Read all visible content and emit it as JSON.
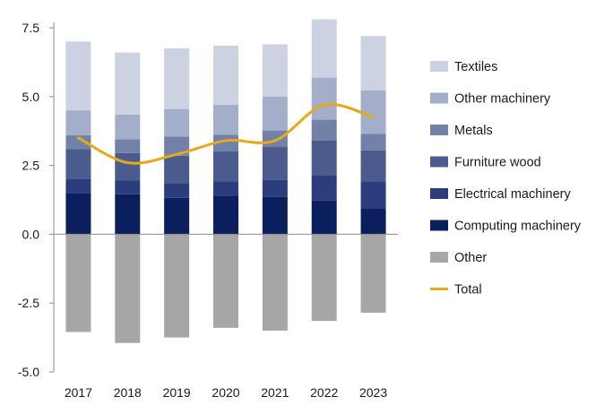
{
  "chart_data": {
    "type": "bar",
    "stacked": true,
    "categories": [
      "2017",
      "2018",
      "2019",
      "2020",
      "2021",
      "2022",
      "2023"
    ],
    "ylim": [
      -5.0,
      7.5
    ],
    "yticks": [
      "-5.0",
      "-2.5",
      "0.0",
      "2.5",
      "5.0",
      "7.5"
    ],
    "grid": false,
    "legend_position": "right",
    "series": [
      {
        "name": "Computing machinery",
        "color": "#0b1f5e",
        "values": [
          1.5,
          1.45,
          1.32,
          1.4,
          1.35,
          1.22,
          0.95
        ]
      },
      {
        "name": "Electrical machinery",
        "color": "#2c3d7e",
        "values": [
          0.5,
          0.5,
          0.53,
          0.52,
          0.62,
          0.93,
          0.97
        ]
      },
      {
        "name": "Furniture wood",
        "color": "#4b5b8e",
        "values": [
          1.1,
          1.0,
          1.0,
          1.1,
          1.2,
          1.26,
          1.13
        ]
      },
      {
        "name": "Metals",
        "color": "#7181a8",
        "values": [
          0.5,
          0.5,
          0.7,
          0.6,
          0.6,
          0.75,
          0.6
        ]
      },
      {
        "name": "Other machinery",
        "color": "#a3aecb",
        "values": [
          0.9,
          0.9,
          1.0,
          1.08,
          1.23,
          1.53,
          1.58
        ]
      },
      {
        "name": "Textiles",
        "color": "#ccd2e2",
        "values": [
          2.5,
          2.25,
          2.2,
          2.15,
          1.9,
          2.12,
          1.97
        ]
      },
      {
        "name": "Other",
        "color": "#a6a6a6",
        "values": [
          -3.55,
          -3.95,
          -3.75,
          -3.4,
          -3.5,
          -3.15,
          -2.85
        ]
      }
    ],
    "line": {
      "name": "Total",
      "color": "#e8a817",
      "values": [
        3.5,
        2.6,
        2.9,
        3.4,
        3.4,
        4.7,
        4.25
      ]
    },
    "legend_order": [
      "Textiles",
      "Other machinery",
      "Metals",
      "Furniture wood",
      "Electrical machinery",
      "Computing machinery",
      "Other",
      "Total"
    ]
  }
}
